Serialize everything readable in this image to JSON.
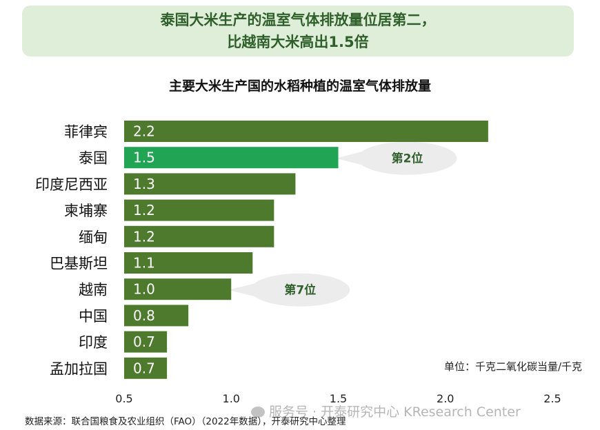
{
  "banner": {
    "line1": "泰国大米生产的温室气体排放量位居第二，",
    "line2": "比越南大米高出1.5倍"
  },
  "chart_data": {
    "type": "bar",
    "orientation": "horizontal",
    "title": "主要大米生产国的水稻种植的温室气体排放量",
    "categories": [
      "菲律宾",
      "泰国",
      "印度尼西亚",
      "柬埔寨",
      "缅甸",
      "巴基斯坦",
      "越南",
      "中国",
      "印度",
      "孟加拉国"
    ],
    "values": [
      2.2,
      1.5,
      1.3,
      1.2,
      1.2,
      1.1,
      1.0,
      0.8,
      0.7,
      0.7
    ],
    "value_labels": [
      "2.2",
      "1.5",
      "1.3",
      "1.2",
      "1.2",
      "1.1",
      "1.0",
      "0.8",
      "0.7",
      "0.7"
    ],
    "xlim": [
      0.5,
      2.5
    ],
    "xticks": [
      0.5,
      1.0,
      1.5,
      2.0,
      2.5
    ],
    "xtick_labels": [
      "0.5",
      "1.0",
      "1.5",
      "2.0",
      "2.5"
    ],
    "grid": false,
    "colors": {
      "bar": "#4e7a2e",
      "highlight": "#22a455",
      "callout_fill": "#ececec"
    },
    "highlight_index": 1,
    "annotations": [
      {
        "text": "第2位",
        "category": "泰国"
      },
      {
        "text": "第7位",
        "category": "越南"
      }
    ],
    "unit_label": "单位：千克二氧化碳当量/千克"
  },
  "source": "数据来源：联合国粮食及农业组织（FAO）（2022年数据），开泰研究中心整理",
  "watermark": "服务号 · 开泰研究中心 KResearch Center"
}
